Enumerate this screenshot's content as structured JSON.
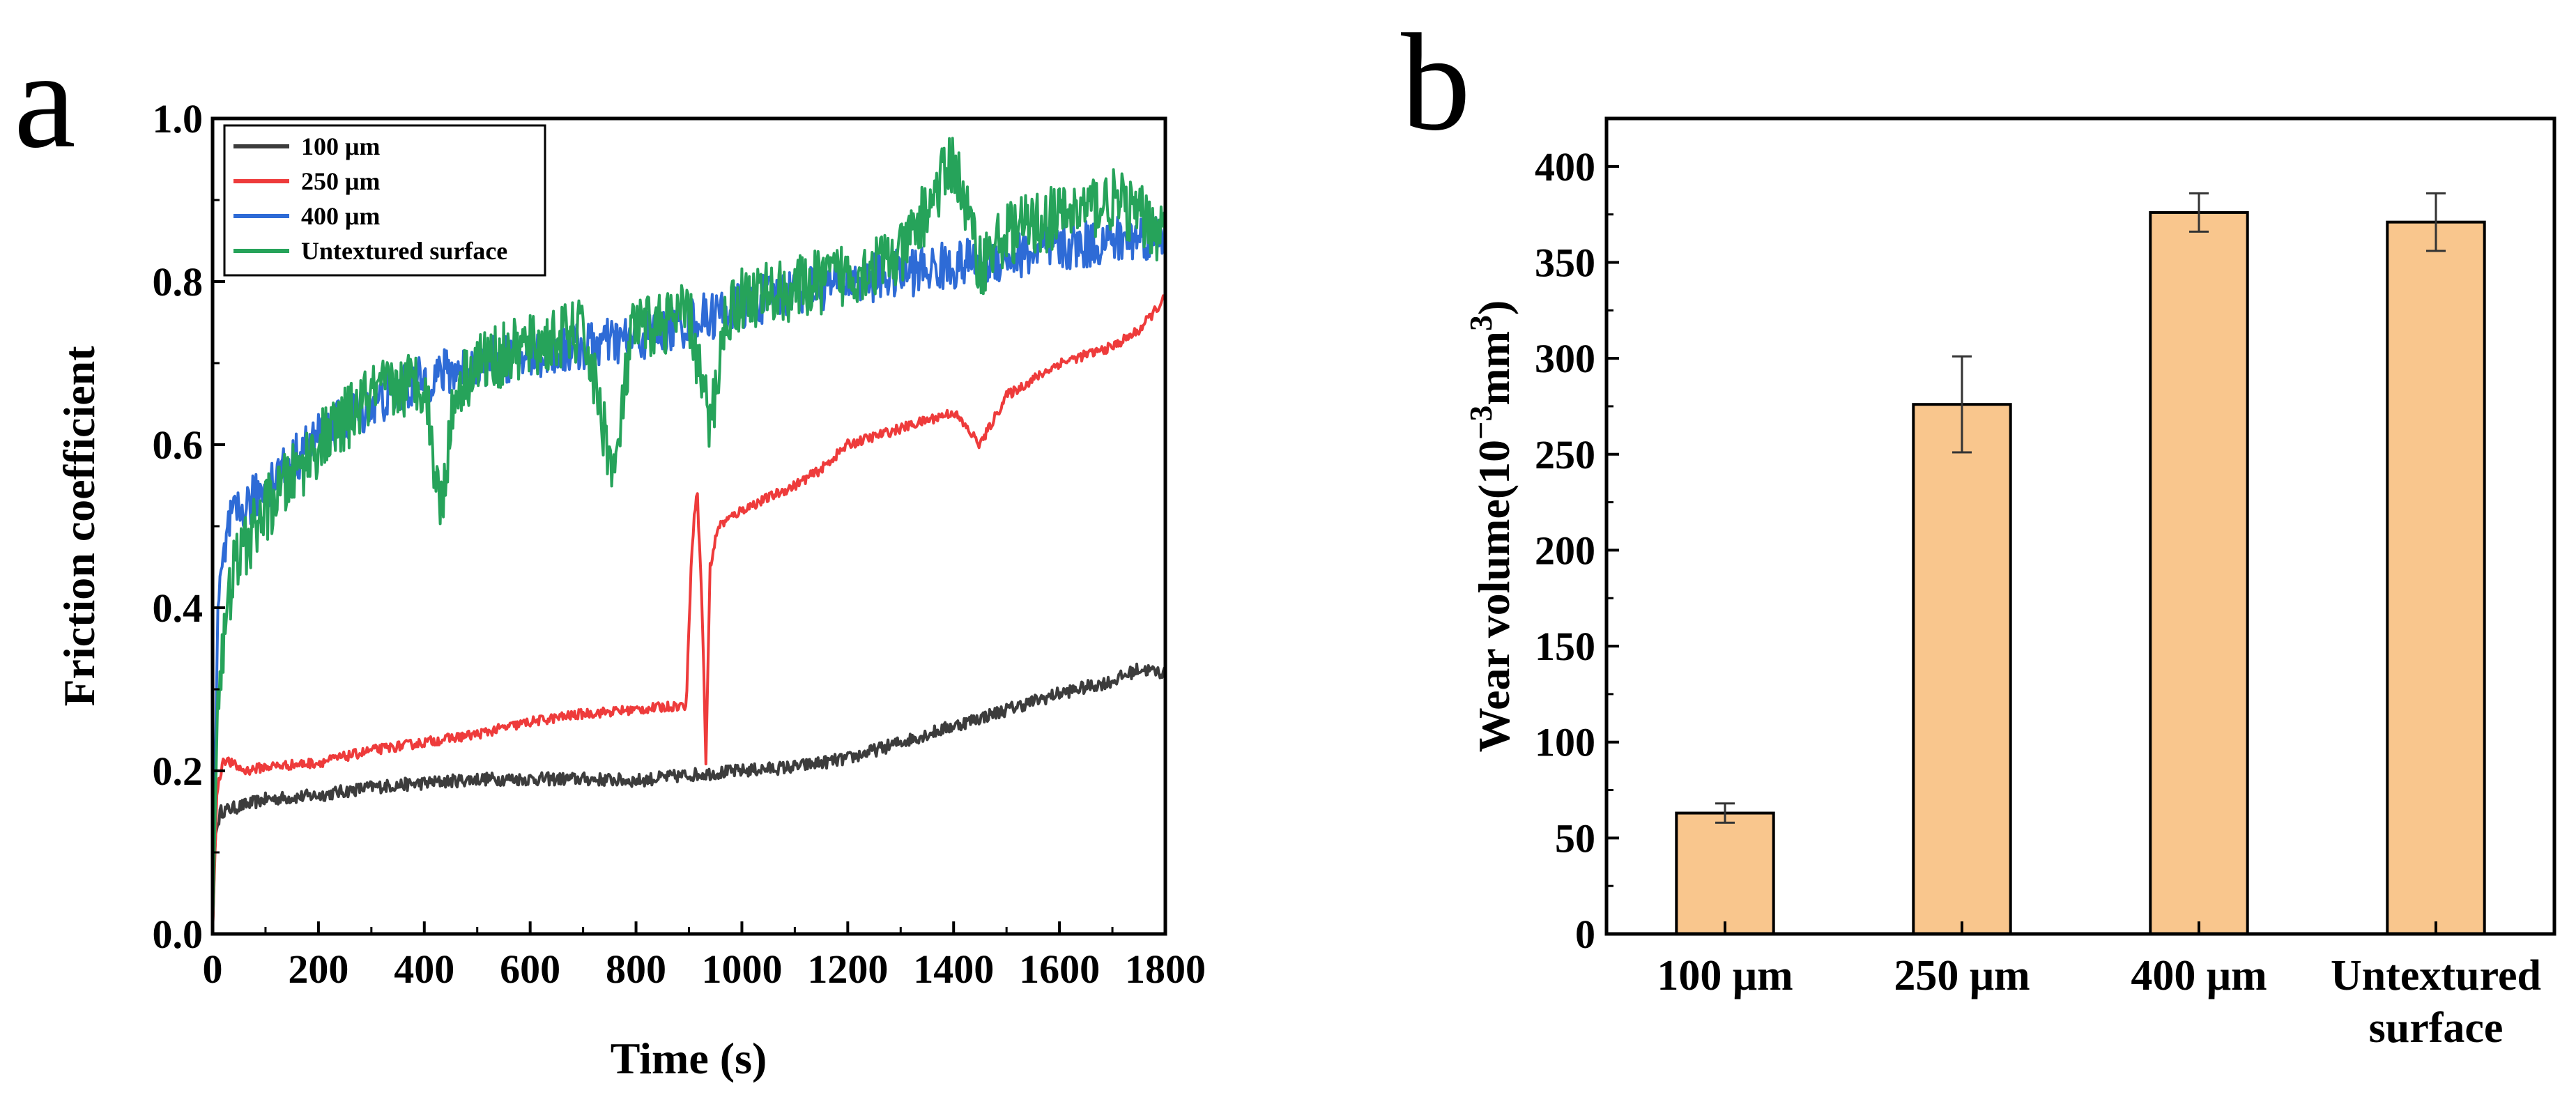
{
  "chart_data": [
    {
      "panel": "a",
      "type": "line",
      "xlabel": "Time (s)",
      "ylabel": "Friction coefficient",
      "xlim": [
        0,
        1800
      ],
      "ylim": [
        0.0,
        1.0
      ],
      "xticks": [
        0,
        200,
        400,
        600,
        800,
        1000,
        1200,
        1400,
        1600,
        1800
      ],
      "yticks": [
        "0.0",
        "0.2",
        "0.4",
        "0.6",
        "0.8",
        "1.0"
      ],
      "legend_position": "top-left",
      "series": [
        {
          "name": "100 μm",
          "color": "#3c3c3c",
          "noise": 0.008,
          "points": [
            [
              0,
              0.0
            ],
            [
              5,
              0.12
            ],
            [
              15,
              0.15
            ],
            [
              100,
              0.165
            ],
            [
              200,
              0.17
            ],
            [
              300,
              0.18
            ],
            [
              400,
              0.185
            ],
            [
              500,
              0.19
            ],
            [
              600,
              0.19
            ],
            [
              700,
              0.19
            ],
            [
              800,
              0.188
            ],
            [
              900,
              0.195
            ],
            [
              1000,
              0.2
            ],
            [
              1100,
              0.205
            ],
            [
              1200,
              0.215
            ],
            [
              1300,
              0.235
            ],
            [
              1400,
              0.255
            ],
            [
              1500,
              0.275
            ],
            [
              1600,
              0.295
            ],
            [
              1700,
              0.31
            ],
            [
              1750,
              0.325
            ],
            [
              1800,
              0.32
            ]
          ]
        },
        {
          "name": "250 μm",
          "color": "#ee3b3b",
          "noise": 0.006,
          "points": [
            [
              0,
              0.0
            ],
            [
              8,
              0.17
            ],
            [
              20,
              0.215
            ],
            [
              60,
              0.2
            ],
            [
              100,
              0.205
            ],
            [
              200,
              0.21
            ],
            [
              300,
              0.225
            ],
            [
              400,
              0.235
            ],
            [
              500,
              0.245
            ],
            [
              600,
              0.26
            ],
            [
              700,
              0.27
            ],
            [
              800,
              0.275
            ],
            [
              880,
              0.28
            ],
            [
              895,
              0.28
            ],
            [
              905,
              0.47
            ],
            [
              915,
              0.55
            ],
            [
              925,
              0.4
            ],
            [
              932,
              0.21
            ],
            [
              940,
              0.45
            ],
            [
              955,
              0.5
            ],
            [
              1000,
              0.52
            ],
            [
              1100,
              0.55
            ],
            [
              1150,
              0.57
            ],
            [
              1200,
              0.6
            ],
            [
              1300,
              0.62
            ],
            [
              1400,
              0.64
            ],
            [
              1450,
              0.6
            ],
            [
              1500,
              0.66
            ],
            [
              1600,
              0.7
            ],
            [
              1700,
              0.72
            ],
            [
              1750,
              0.74
            ],
            [
              1800,
              0.78
            ]
          ]
        },
        {
          "name": "400 μm",
          "color": "#2e6bd6",
          "noise": 0.03,
          "points": [
            [
              0,
              0.0
            ],
            [
              10,
              0.4
            ],
            [
              30,
              0.5
            ],
            [
              100,
              0.55
            ],
            [
              200,
              0.61
            ],
            [
              300,
              0.65
            ],
            [
              400,
              0.68
            ],
            [
              500,
              0.7
            ],
            [
              600,
              0.71
            ],
            [
              700,
              0.72
            ],
            [
              800,
              0.73
            ],
            [
              900,
              0.75
            ],
            [
              1000,
              0.77
            ],
            [
              1100,
              0.79
            ],
            [
              1200,
              0.8
            ],
            [
              1300,
              0.81
            ],
            [
              1400,
              0.82
            ],
            [
              1500,
              0.83
            ],
            [
              1600,
              0.84
            ],
            [
              1700,
              0.85
            ],
            [
              1800,
              0.86
            ]
          ]
        },
        {
          "name": "Untextured surface",
          "color": "#26a35a",
          "noise": 0.04,
          "points": [
            [
              0,
              0.0
            ],
            [
              10,
              0.3
            ],
            [
              40,
              0.45
            ],
            [
              100,
              0.52
            ],
            [
              200,
              0.6
            ],
            [
              300,
              0.66
            ],
            [
              400,
              0.68
            ],
            [
              430,
              0.52
            ],
            [
              460,
              0.67
            ],
            [
              500,
              0.7
            ],
            [
              600,
              0.72
            ],
            [
              700,
              0.74
            ],
            [
              760,
              0.56
            ],
            [
              790,
              0.73
            ],
            [
              800,
              0.74
            ],
            [
              900,
              0.76
            ],
            [
              940,
              0.62
            ],
            [
              970,
              0.76
            ],
            [
              1000,
              0.78
            ],
            [
              1100,
              0.79
            ],
            [
              1200,
              0.81
            ],
            [
              1300,
              0.83
            ],
            [
              1400,
              0.95
            ],
            [
              1450,
              0.82
            ],
            [
              1500,
              0.86
            ],
            [
              1600,
              0.88
            ],
            [
              1700,
              0.9
            ],
            [
              1800,
              0.86
            ]
          ]
        }
      ]
    },
    {
      "panel": "b",
      "type": "bar",
      "xlabel": "",
      "ylabel": "Wear volume(10",
      "ylabel_exponent": "−3",
      "ylabel_tail": "mm",
      "ylabel_tail_exponent": "3",
      "ylabel_close": ")",
      "ylim": [
        0,
        425
      ],
      "yticks": [
        "0",
        "50",
        "100",
        "150",
        "200",
        "250",
        "300",
        "350",
        "400"
      ],
      "bar_color": "#f9c68d",
      "categories": [
        {
          "line1": "100 μm",
          "line2": ""
        },
        {
          "line1": "250 μm",
          "line2": ""
        },
        {
          "line1": "400 μm",
          "line2": ""
        },
        {
          "line1": "Untextured",
          "line2": "surface"
        }
      ],
      "values": [
        63,
        276,
        376,
        371
      ],
      "errors": [
        5,
        25,
        10,
        15
      ]
    }
  ]
}
